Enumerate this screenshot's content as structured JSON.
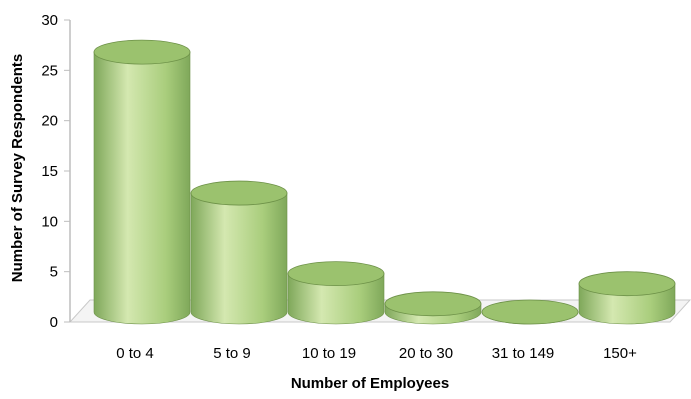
{
  "chart_data": {
    "type": "bar",
    "style": "3d-cylinder",
    "categories": [
      "0 to 4",
      "5 to 9",
      "10 to 19",
      "20 to 30",
      "31 to 149",
      "150+"
    ],
    "values": [
      28,
      14,
      6,
      3,
      0,
      5
    ],
    "xlabel": "Number of Employees",
    "ylabel": "Number of Survey Respondents",
    "ylim": [
      0,
      30
    ],
    "yticks": [
      "0",
      "5",
      "10",
      "15",
      "20",
      "25",
      "30"
    ],
    "grid": false,
    "legend": "none",
    "colors": {
      "bar_light": "#d4e8b0",
      "bar_mid": "#a9cd7c",
      "bar_dark": "#7fa85a",
      "top_fill": "#9bc26e",
      "top_edge": "#6d9148",
      "floor": "#f4f4f4"
    }
  }
}
